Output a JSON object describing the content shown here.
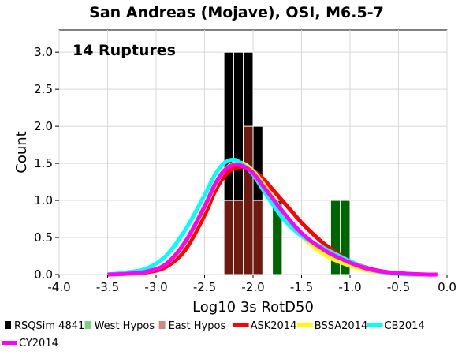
{
  "chart_data": {
    "type": "bar",
    "title": "San Andreas (Mojave), OSI, M6.5-7",
    "xlabel": "Log10 3s RotD50",
    "ylabel": "Count",
    "xlim": [
      -4.0,
      0.0
    ],
    "ylim": [
      0.0,
      3.3
    ],
    "xticks": [
      "-4.0",
      "-3.5",
      "-3.0",
      "-2.5",
      "-2.0",
      "-1.5",
      "-1.0",
      "-0.5",
      "0.0"
    ],
    "yticks": [
      "0.0",
      "0.5",
      "1.0",
      "1.5",
      "2.0",
      "2.5",
      "3.0"
    ],
    "grid": true,
    "annotation": "14 Ruptures",
    "legend_position": "bottom",
    "bar_width": 0.1,
    "histograms": [
      {
        "name": "RSQSim 4841",
        "color": "#000000",
        "bins": [
          [
            -2.3,
            3
          ],
          [
            -2.2,
            3
          ],
          [
            -2.1,
            3
          ],
          [
            -2.0,
            2
          ],
          [
            -1.8,
            1
          ],
          [
            -1.2,
            1
          ],
          [
            -1.1,
            1
          ]
        ]
      },
      {
        "name": "West Hypos",
        "color": "#006400",
        "bins": [
          [
            -1.8,
            1
          ],
          [
            -1.2,
            1
          ],
          [
            -1.1,
            1
          ]
        ]
      },
      {
        "name": "East Hypos",
        "color": "#6e1a10",
        "bins": [
          [
            -2.3,
            1
          ],
          [
            -2.2,
            1
          ],
          [
            -2.1,
            2
          ],
          [
            -2.0,
            1
          ]
        ]
      }
    ],
    "series": [
      {
        "name": "ASK2014",
        "color": "#ff0000",
        "x": [
          -3.5,
          -3.3,
          -3.1,
          -2.9,
          -2.7,
          -2.5,
          -2.4,
          -2.3,
          -2.2,
          -2.1,
          -2.0,
          -1.9,
          -1.8,
          -1.7,
          -1.6,
          -1.5,
          -1.4,
          -1.3,
          -1.2,
          -1.0,
          -0.8,
          -0.6,
          -0.4,
          -0.2,
          -0.1
        ],
        "y": [
          0.0,
          0.01,
          0.03,
          0.1,
          0.33,
          0.8,
          1.1,
          1.32,
          1.43,
          1.45,
          1.4,
          1.3,
          1.15,
          1.0,
          0.85,
          0.7,
          0.57,
          0.45,
          0.35,
          0.18,
          0.08,
          0.03,
          0.01,
          0.0,
          0.0
        ]
      },
      {
        "name": "BSSA2014",
        "color": "#ffff00",
        "x": [
          -3.5,
          -3.3,
          -3.1,
          -2.9,
          -2.7,
          -2.5,
          -2.4,
          -2.3,
          -2.2,
          -2.1,
          -2.0,
          -1.9,
          -1.8,
          -1.7,
          -1.6,
          -1.5,
          -1.4,
          -1.3,
          -1.2,
          -1.0,
          -0.8,
          -0.6,
          -0.4,
          -0.2,
          -0.1
        ],
        "y": [
          0.0,
          0.01,
          0.04,
          0.14,
          0.42,
          0.9,
          1.18,
          1.4,
          1.5,
          1.5,
          1.4,
          1.24,
          1.05,
          0.86,
          0.68,
          0.52,
          0.4,
          0.3,
          0.22,
          0.12,
          0.05,
          0.02,
          0.0,
          0.0,
          0.0
        ]
      },
      {
        "name": "CB2014",
        "color": "#00ffff",
        "x": [
          -3.5,
          -3.3,
          -3.1,
          -2.9,
          -2.7,
          -2.5,
          -2.4,
          -2.3,
          -2.2,
          -2.1,
          -2.0,
          -1.9,
          -1.8,
          -1.7,
          -1.6,
          -1.5,
          -1.4,
          -1.3,
          -1.2,
          -1.0,
          -0.8,
          -0.6,
          -0.4,
          -0.2,
          -0.1
        ],
        "y": [
          0.0,
          0.03,
          0.08,
          0.25,
          0.6,
          1.07,
          1.33,
          1.5,
          1.55,
          1.48,
          1.35,
          1.15,
          0.95,
          0.77,
          0.63,
          0.52,
          0.44,
          0.38,
          0.31,
          0.18,
          0.07,
          0.02,
          0.0,
          0.0,
          0.0
        ]
      },
      {
        "name": "CY2014",
        "color": "#ff00ff",
        "x": [
          -3.5,
          -3.3,
          -3.1,
          -2.9,
          -2.7,
          -2.5,
          -2.4,
          -2.3,
          -2.2,
          -2.1,
          -2.0,
          -1.9,
          -1.8,
          -1.7,
          -1.6,
          -1.5,
          -1.4,
          -1.3,
          -1.2,
          -1.0,
          -0.8,
          -0.6,
          -0.4,
          -0.2,
          -0.1
        ],
        "y": [
          0.0,
          0.01,
          0.04,
          0.14,
          0.44,
          0.92,
          1.2,
          1.4,
          1.48,
          1.46,
          1.37,
          1.2,
          1.03,
          0.86,
          0.7,
          0.56,
          0.45,
          0.36,
          0.28,
          0.16,
          0.07,
          0.03,
          0.01,
          0.0,
          0.0
        ]
      }
    ],
    "legend": [
      {
        "label": "RSQSim 4841",
        "kind": "box",
        "color": "#000000"
      },
      {
        "label": "West Hypos",
        "kind": "box",
        "color": "#7fcf7f"
      },
      {
        "label": "East Hypos",
        "kind": "box",
        "color": "#c98a86"
      },
      {
        "label": "ASK2014",
        "kind": "line",
        "color": "#ff0000"
      },
      {
        "label": "BSSA2014",
        "kind": "line",
        "color": "#ffff00"
      },
      {
        "label": "CB2014",
        "kind": "line",
        "color": "#00ffff"
      },
      {
        "label": "CY2014",
        "kind": "line",
        "color": "#ff00ff"
      }
    ]
  }
}
